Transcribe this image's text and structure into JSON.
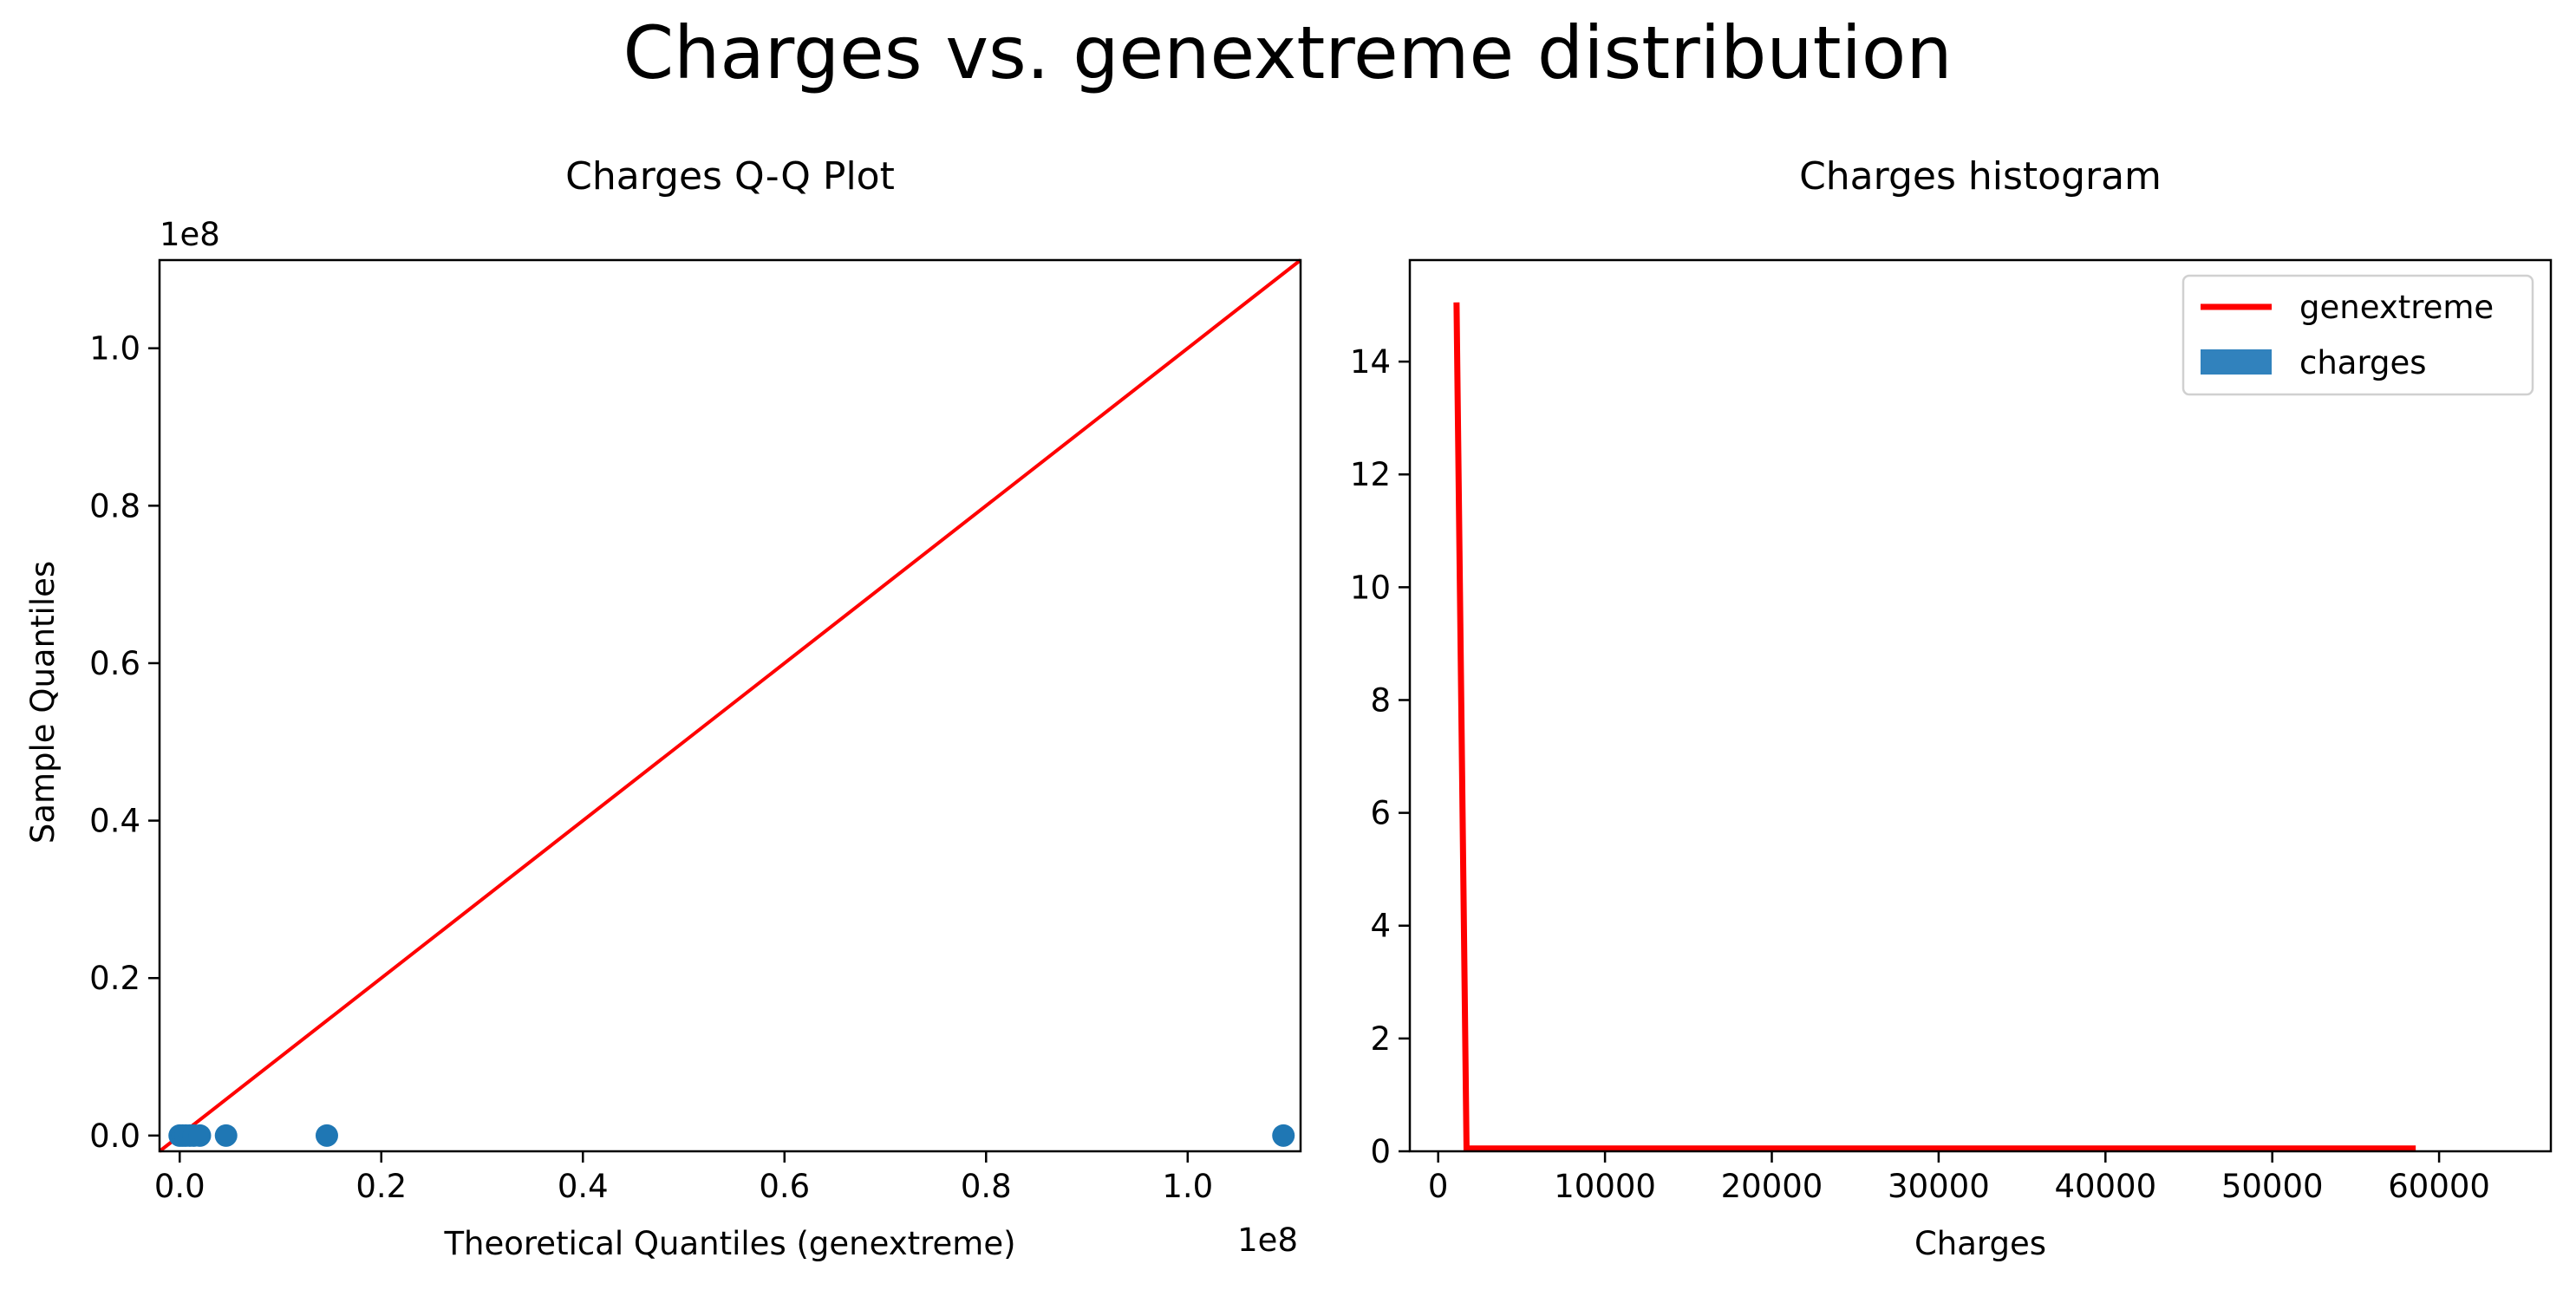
{
  "figure": {
    "title": "Charges vs. genextreme distribution"
  },
  "colors": {
    "fit_line": "#ff0000",
    "points": "#1f77b4",
    "bars": "#3182bd"
  },
  "chart_data": [
    {
      "type": "scatter",
      "title": "Charges Q-Q Plot",
      "xlabel": "Theoretical Quantiles (genextreme)",
      "ylabel": "Sample Quantiles",
      "x_offset_label": "1e8",
      "y_offset_label": "1e8",
      "xlim": [
        -0.02,
        1.112
      ],
      "ylim": [
        -0.02,
        1.112
      ],
      "xticks": [
        0.0,
        0.2,
        0.4,
        0.6,
        0.8,
        1.0
      ],
      "xtick_labels": [
        "0.0",
        "0.2",
        "0.4",
        "0.6",
        "0.8",
        "1.0"
      ],
      "yticks": [
        0.0,
        0.2,
        0.4,
        0.6,
        0.8,
        1.0
      ],
      "ytick_labels": [
        "0.0",
        "0.2",
        "0.4",
        "0.6",
        "0.8",
        "1.0"
      ],
      "points": [
        {
          "x": 0.0,
          "y": 0.0
        },
        {
          "x": 0.003,
          "y": 0.0
        },
        {
          "x": 0.006,
          "y": 0.0
        },
        {
          "x": 0.01,
          "y": 0.0
        },
        {
          "x": 0.014,
          "y": 0.0
        },
        {
          "x": 0.02,
          "y": 0.0
        },
        {
          "x": 0.046,
          "y": 0.0
        },
        {
          "x": 0.146,
          "y": 0.0
        },
        {
          "x": 1.095,
          "y": 0.0
        }
      ],
      "reference_line": {
        "x": [
          -0.02,
          1.112
        ],
        "y": [
          -0.02,
          1.112
        ]
      }
    },
    {
      "type": "line",
      "title": "Charges histogram",
      "xlabel": "Charges",
      "ylabel": "",
      "xlim": [
        -1700,
        66700
      ],
      "ylim": [
        0,
        15.8
      ],
      "xticks": [
        0,
        10000,
        20000,
        30000,
        40000,
        50000,
        60000
      ],
      "xtick_labels": [
        "0",
        "10000",
        "20000",
        "30000",
        "40000",
        "50000",
        "60000"
      ],
      "yticks": [
        0,
        2,
        4,
        6,
        8,
        10,
        12,
        14
      ],
      "ytick_labels": [
        "0",
        "2",
        "4",
        "6",
        "8",
        "10",
        "12",
        "14"
      ],
      "legend_position": "top-right",
      "series": [
        {
          "name": "genextreme",
          "kind": "line",
          "x": [
            1100,
            1700,
            2500,
            10000,
            20000,
            30000,
            40000,
            50000,
            58600
          ],
          "y": [
            15.05,
            0.05,
            0.05,
            0.05,
            0.05,
            0.05,
            0.05,
            0.05,
            0.05
          ]
        },
        {
          "name": "charges",
          "kind": "bar",
          "values": []
        }
      ]
    }
  ]
}
